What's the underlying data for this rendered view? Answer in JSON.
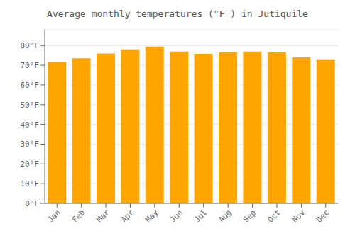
{
  "chart_data": {
    "type": "bar",
    "title": "Average monthly temperatures (°F ) in Jutiquile",
    "categories": [
      "Jan",
      "Feb",
      "Mar",
      "Apr",
      "May",
      "Jun",
      "Jul",
      "Aug",
      "Sep",
      "Oct",
      "Nov",
      "Dec"
    ],
    "values": [
      71.5,
      73.5,
      76.0,
      78.0,
      79.5,
      77.0,
      75.8,
      76.5,
      77.0,
      76.5,
      74.0,
      73.0
    ],
    "color": "#FFA500",
    "ylim": [
      0,
      88
    ],
    "yticks": [
      {
        "value": 0,
        "label": "0°F"
      },
      {
        "value": 10,
        "label": "10°F"
      },
      {
        "value": 20,
        "label": "20°F"
      },
      {
        "value": 30,
        "label": "30°F"
      },
      {
        "value": 40,
        "label": "40°F"
      },
      {
        "value": 50,
        "label": "50°F"
      },
      {
        "value": 60,
        "label": "60°F"
      },
      {
        "value": 70,
        "label": "70°F"
      },
      {
        "value": 80,
        "label": "80°F"
      }
    ],
    "grid": true
  }
}
